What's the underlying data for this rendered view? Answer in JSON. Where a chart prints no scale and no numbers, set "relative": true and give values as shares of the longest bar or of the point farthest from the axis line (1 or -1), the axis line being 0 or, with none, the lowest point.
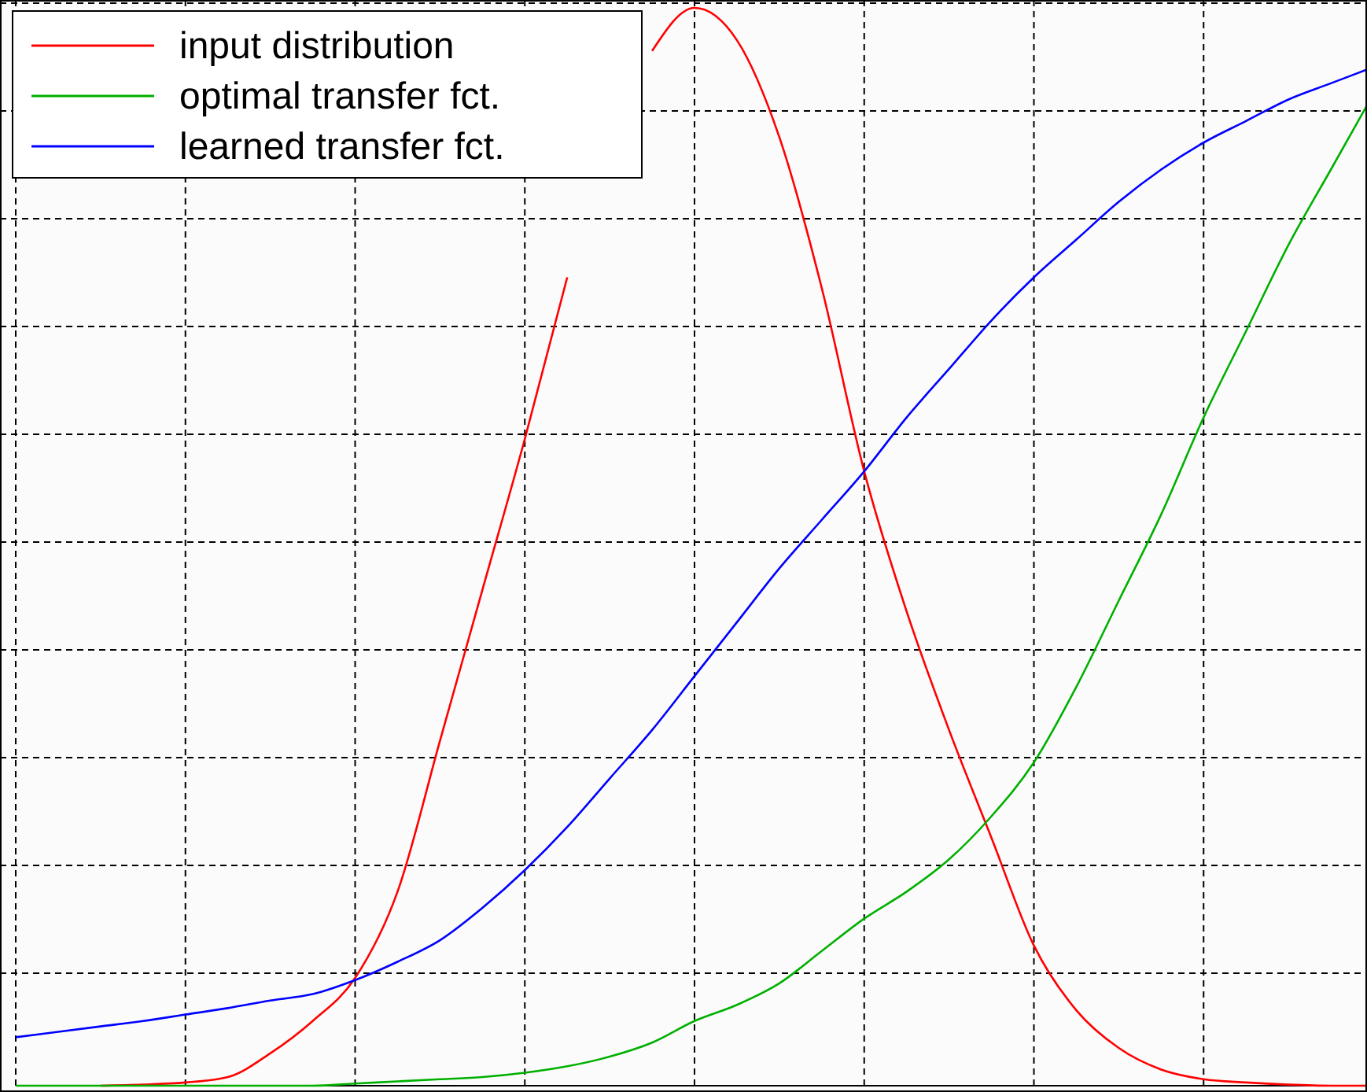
{
  "chart_data": {
    "type": "line",
    "relative": true,
    "grid": true,
    "legend": "top left",
    "marker": "none",
    "line_style": "solid",
    "categories": [
      null,
      null,
      null,
      null,
      null,
      null,
      null,
      null,
      null,
      null,
      null,
      null,
      null,
      null,
      null,
      null,
      null,
      null,
      null,
      null,
      null,
      null,
      null,
      null,
      null,
      null,
      null,
      null,
      null,
      null,
      null,
      null,
      null
    ],
    "series": [
      {
        "name": "input distribution",
        "color": "#ff0000",
        "values": [
          null,
          null,
          0,
          0.001,
          0.003,
          0.008,
          0.03,
          0.06,
          0.1,
          0.18,
          0.32,
          0.46,
          0.6,
          0.75,
          null,
          0.96,
          1,
          0.97,
          0.88,
          0.74,
          0.57,
          0.44,
          0.33,
          0.23,
          0.13,
          0.07,
          0.035,
          0.015,
          0.006,
          0.003,
          0.001,
          0,
          0
        ]
      },
      {
        "name": "optimal transfer fct.",
        "color": "#00b000",
        "values": [
          0,
          0,
          0,
          0,
          0,
          0,
          0,
          0,
          0.002,
          0.004,
          0.006,
          0.008,
          0.012,
          0.018,
          0.027,
          0.04,
          0.06,
          0.075,
          0.095,
          0.125,
          0.155,
          0.18,
          0.21,
          0.25,
          0.3,
          0.37,
          0.45,
          0.53,
          0.62,
          0.7,
          0.78,
          0.85,
          0.92
        ]
      },
      {
        "name": "learned transfer fct.",
        "color": "#0000ff",
        "values": [
          0.045,
          0.05,
          0.055,
          0.06,
          0.066,
          0.072,
          0.079,
          0.085,
          0.098,
          0.115,
          0.135,
          0.165,
          0.2,
          0.24,
          0.285,
          0.33,
          0.38,
          0.43,
          0.48,
          0.525,
          0.57,
          0.62,
          0.665,
          0.71,
          0.75,
          0.785,
          0.82,
          0.85,
          0.875,
          0.895,
          0.915,
          0.93,
          0.945
        ]
      }
    ]
  }
}
